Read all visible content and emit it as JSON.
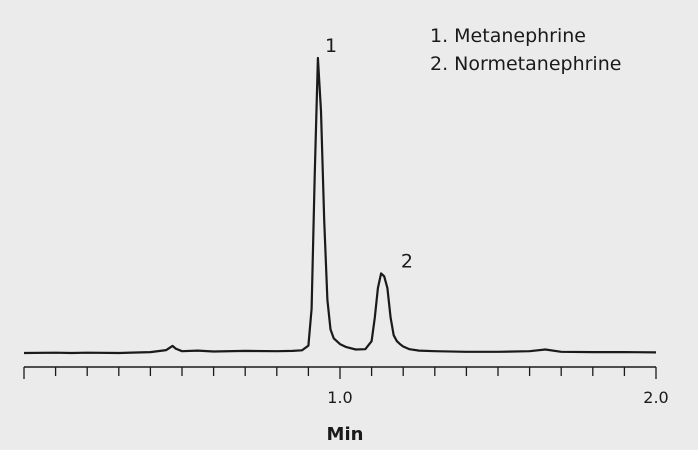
{
  "chart_data": {
    "type": "line",
    "title": "",
    "xlabel": "Min",
    "ylabel": "",
    "xlim": [
      0.0,
      2.0
    ],
    "x_tick_labels": [
      {
        "value": 1.0,
        "label": "1.0"
      },
      {
        "value": 2.0,
        "label": "2.0"
      }
    ],
    "minor_tick_step": 0.1,
    "grid": false,
    "legend": {
      "placement": "top-right",
      "entries": [
        "1.  Metanephrine",
        "2.  Normetanephrine"
      ]
    },
    "series": [
      {
        "color": "#1a1a1a",
        "x": [
          0.0,
          0.1,
          0.15,
          0.2,
          0.3,
          0.4,
          0.45,
          0.47,
          0.48,
          0.5,
          0.55,
          0.6,
          0.7,
          0.8,
          0.85,
          0.88,
          0.9,
          0.91,
          0.92,
          0.93,
          0.94,
          0.95,
          0.96,
          0.97,
          0.98,
          1.0,
          1.02,
          1.05,
          1.08,
          1.1,
          1.11,
          1.12,
          1.13,
          1.14,
          1.15,
          1.16,
          1.17,
          1.18,
          1.19,
          1.2,
          1.22,
          1.25,
          1.3,
          1.4,
          1.5,
          1.6,
          1.65,
          1.7,
          1.8,
          1.9,
          2.0
        ],
        "y": [
          0.0,
          0.1,
          0.0,
          0.1,
          0.0,
          0.3,
          1.0,
          2.4,
          1.5,
          0.6,
          0.8,
          0.5,
          0.7,
          0.6,
          0.7,
          0.9,
          2.5,
          15,
          60,
          100,
          82,
          45,
          18,
          8,
          5,
          3,
          2,
          1.2,
          1.3,
          4,
          12,
          22,
          27,
          26,
          22,
          12,
          6,
          4,
          3,
          2.2,
          1.3,
          0.8,
          0.6,
          0.4,
          0.4,
          0.6,
          1.2,
          0.4,
          0.3,
          0.3,
          0.2
        ]
      }
    ],
    "annotations": [
      {
        "text": "1",
        "x": 0.94,
        "y": 102
      },
      {
        "text": "2",
        "x": 1.18,
        "y": 29
      }
    ]
  }
}
